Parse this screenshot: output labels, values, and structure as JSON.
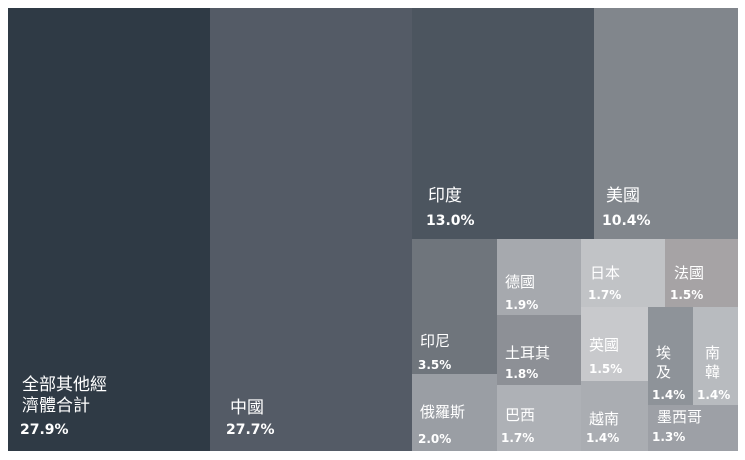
{
  "chart_data": {
    "type": "treemap",
    "items": [
      {
        "name": "全部其他經\n濟體合計",
        "value": 27.9,
        "label": "27.9%",
        "color": "#2f3a45"
      },
      {
        "name": "中國",
        "value": 27.7,
        "label": "27.7%",
        "color": "#545b66"
      },
      {
        "name": "印度",
        "value": 13.0,
        "label": "13.0%",
        "color": "#4c555f"
      },
      {
        "name": "美國",
        "value": 10.4,
        "label": "10.4%",
        "color": "#81868c"
      },
      {
        "name": "印尼",
        "value": 3.5,
        "label": "3.5%",
        "color": "#6f757c"
      },
      {
        "name": "俄羅斯",
        "value": 2.0,
        "label": "2.0%",
        "color": "#9a9ea4"
      },
      {
        "name": "德國",
        "value": 1.9,
        "label": "1.9%",
        "color": "#a6a9ae"
      },
      {
        "name": "土耳其",
        "value": 1.8,
        "label": "1.8%",
        "color": "#8d9096"
      },
      {
        "name": "巴西",
        "value": 1.7,
        "label": "1.7%",
        "color": "#aeb1b6"
      },
      {
        "name": "日本",
        "value": 1.7,
        "label": "1.7%",
        "color": "#c1c3c6"
      },
      {
        "name": "法國",
        "value": 1.5,
        "label": "1.5%",
        "color": "#a6a3a5"
      },
      {
        "name": "英國",
        "value": 1.5,
        "label": "1.5%",
        "color": "#c8c9cc"
      },
      {
        "name": "越南",
        "value": 1.4,
        "label": "1.4%",
        "color": "#aaadb2"
      },
      {
        "name": "埃\n及",
        "value": 1.4,
        "label": "1.4%",
        "color": "#8e9399"
      },
      {
        "name": "南\n韓",
        "value": 1.4,
        "label": "1.4%",
        "color": "#b8bbbf"
      },
      {
        "name": "墨西哥",
        "value": 1.3,
        "label": "1.3%",
        "color": "#9da0a6"
      }
    ]
  }
}
